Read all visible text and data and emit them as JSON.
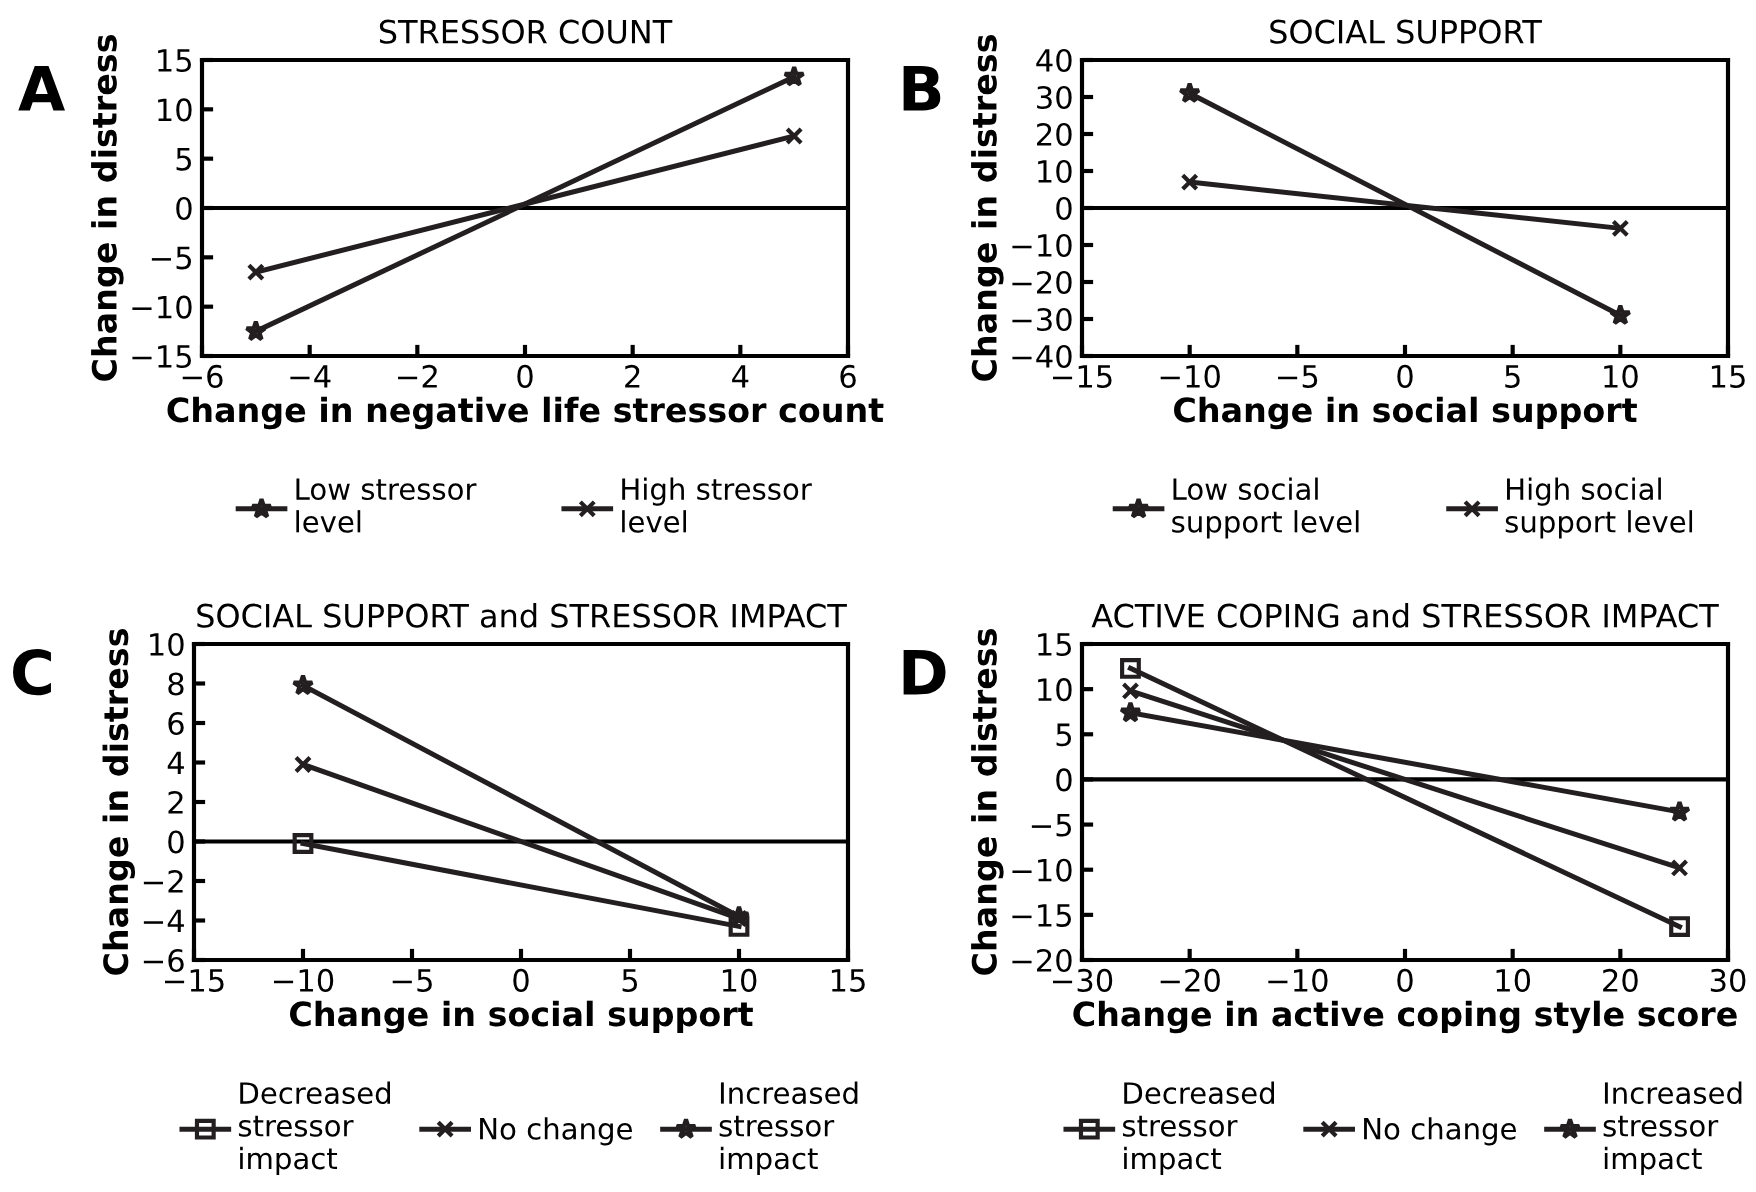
{
  "chart_data": [
    {
      "type": "line",
      "title": "STRESSOR COUNT",
      "xlabel": "Change in negative life stressor count",
      "ylabel": "Change in distress",
      "annotations": [
        "A"
      ],
      "x": [
        -5,
        5
      ],
      "xlim": [
        -6,
        6
      ],
      "xticks": [
        {
          "value": -6,
          "label": "−6"
        },
        {
          "value": -4,
          "label": "−4"
        },
        {
          "value": -2,
          "label": "−2"
        },
        0,
        2,
        4,
        6
      ],
      "ylim": [
        -15,
        15
      ],
      "yticks": [
        {
          "value": -15,
          "label": "−15"
        },
        {
          "value": -10,
          "label": "−10"
        },
        {
          "value": -5,
          "label": "−5"
        },
        0,
        5,
        10,
        15
      ],
      "grid": false,
      "legend": "bottom",
      "line_style": "solid",
      "ref_lines": [
        {
          "axis": "y",
          "value": 0,
          "color": "#000000"
        }
      ],
      "series": [
        {
          "name": "Low stressor\nlevel",
          "color": "#231f20",
          "marker": "star",
          "values": [
            -12.5,
            13.3
          ]
        },
        {
          "name": "High stressor\nlevel",
          "color": "#231f20",
          "marker": "cross",
          "values": [
            -6.5,
            7.3
          ]
        }
      ]
    },
    {
      "type": "line",
      "title": "SOCIAL SUPPORT",
      "xlabel": "Change in social support",
      "ylabel": "Change in distress",
      "annotations": [
        "B"
      ],
      "x": [
        -10,
        10
      ],
      "xlim": [
        -15,
        15
      ],
      "xticks": [
        {
          "value": -15,
          "label": "−15"
        },
        {
          "value": -10,
          "label": "−10"
        },
        {
          "value": -5,
          "label": "−5"
        },
        0,
        5,
        10,
        15
      ],
      "ylim": [
        -40,
        40
      ],
      "yticks": [
        {
          "value": -40,
          "label": "−40"
        },
        {
          "value": -30,
          "label": "−30"
        },
        {
          "value": -20,
          "label": "−20"
        },
        {
          "value": -10,
          "label": "−10"
        },
        0,
        10,
        20,
        30,
        40
      ],
      "grid": false,
      "legend": "bottom",
      "line_style": "solid",
      "ref_lines": [
        {
          "axis": "y",
          "value": 0,
          "color": "#000000"
        }
      ],
      "series": [
        {
          "name": "Low social\nsupport level",
          "color": "#231f20",
          "marker": "star",
          "values": [
            31,
            -29
          ]
        },
        {
          "name": "High social\nsupport level",
          "color": "#231f20",
          "marker": "cross",
          "values": [
            7,
            -5.5
          ]
        }
      ]
    },
    {
      "type": "line",
      "title": "SOCIAL SUPPORT and STRESSOR IMPACT",
      "xlabel": "Change in social support",
      "ylabel": "Change in distress",
      "annotations": [
        "C"
      ],
      "x": [
        -10,
        10
      ],
      "xlim": [
        -15,
        15
      ],
      "xticks": [
        {
          "value": -15,
          "label": "−15"
        },
        {
          "value": -10,
          "label": "−10"
        },
        {
          "value": -5,
          "label": "−5"
        },
        0,
        5,
        10,
        15
      ],
      "ylim": [
        -6,
        10
      ],
      "yticks": [
        {
          "value": -6,
          "label": "−6"
        },
        {
          "value": -4,
          "label": "−4"
        },
        {
          "value": -2,
          "label": "−2"
        },
        0,
        2,
        4,
        6,
        8,
        10
      ],
      "grid": false,
      "legend": "bottom",
      "line_style": "solid",
      "ref_lines": [
        {
          "axis": "y",
          "value": 0,
          "color": "#000000"
        }
      ],
      "series": [
        {
          "name": "Decreased\nstressor\nimpact",
          "color": "#231f20",
          "marker": "square",
          "values": [
            -0.1,
            -4.3
          ]
        },
        {
          "name": "No change",
          "color": "#231f20",
          "marker": "cross",
          "values": [
            3.9,
            -3.9
          ]
        },
        {
          "name": "Increased\nstressor\nimpact",
          "color": "#231f20",
          "marker": "star",
          "values": [
            7.9,
            -3.8
          ]
        }
      ]
    },
    {
      "type": "line",
      "title": "ACTIVE COPING and STRESSOR IMPACT",
      "xlabel": "Change in active coping style score",
      "ylabel": "Change in distress",
      "annotations": [
        "D"
      ],
      "x": [
        -25.5,
        25.5
      ],
      "xlim": [
        -30,
        30
      ],
      "xticks": [
        {
          "value": -30,
          "label": "−30"
        },
        {
          "value": -20,
          "label": "−20"
        },
        {
          "value": -10,
          "label": "−10"
        },
        0,
        10,
        20,
        30
      ],
      "ylim": [
        -20,
        15
      ],
      "yticks": [
        {
          "value": -20,
          "label": "−20"
        },
        {
          "value": -15,
          "label": "−15"
        },
        {
          "value": -10,
          "label": "−10"
        },
        {
          "value": -5,
          "label": "−5"
        },
        0,
        5,
        10,
        15
      ],
      "grid": false,
      "legend": "bottom",
      "line_style": "solid",
      "ref_lines": [
        {
          "axis": "y",
          "value": 0,
          "color": "#000000"
        }
      ],
      "series": [
        {
          "name": "Decreased\nstressor\nimpact",
          "color": "#231f20",
          "marker": "square",
          "values": [
            12.3,
            -16.3
          ]
        },
        {
          "name": "No change",
          "color": "#231f20",
          "marker": "cross",
          "values": [
            9.8,
            -9.8
          ]
        },
        {
          "name": "Increased\nstressor\nimpact",
          "color": "#231f20",
          "marker": "star",
          "values": [
            7.4,
            -3.6
          ]
        }
      ]
    }
  ]
}
